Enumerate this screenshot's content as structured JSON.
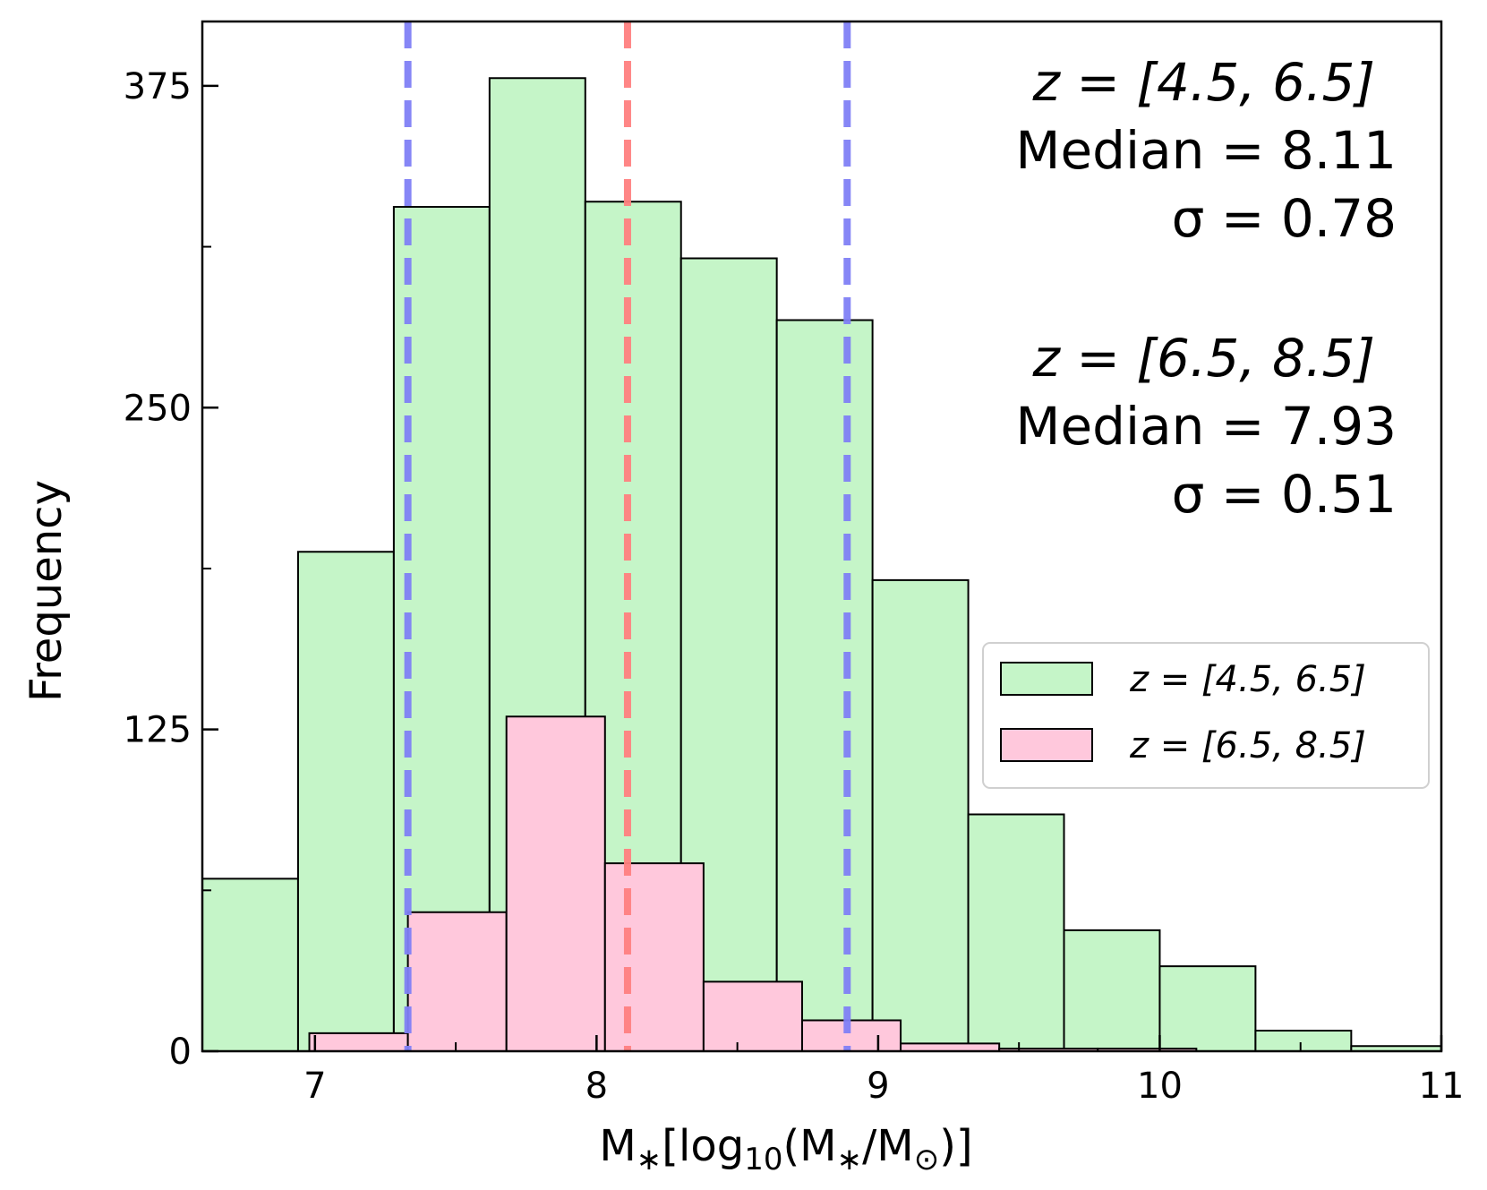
{
  "chart_data": {
    "type": "bar",
    "title": "",
    "xlabel": "M_*[log10(M_*/M_⊙)]",
    "ylabel": "Frequency",
    "xlim": [
      6.6,
      11.0
    ],
    "ylim": [
      0,
      400
    ],
    "xticks": [
      7,
      8,
      9,
      10,
      11
    ],
    "yticks": [
      0,
      125,
      250,
      375
    ],
    "series": [
      {
        "name": "z = [4.5, 6.5]",
        "color": "#c5f5c8",
        "edges": [
          6.6,
          6.94,
          7.28,
          7.62,
          7.96,
          8.3,
          8.64,
          8.98,
          9.32,
          9.66,
          10.0,
          10.34,
          10.68,
          11.02
        ],
        "values": [
          67,
          194,
          328,
          378,
          330,
          308,
          284,
          183,
          92,
          47,
          33,
          8,
          2
        ]
      },
      {
        "name": "z = [6.5, 8.5]",
        "color": "#ffc8dc",
        "edges": [
          6.98,
          7.33,
          7.68,
          8.03,
          8.38,
          8.73,
          9.08,
          9.43,
          9.78,
          10.13
        ],
        "values": [
          7,
          54,
          130,
          73,
          27,
          12,
          3,
          1,
          1
        ]
      }
    ],
    "vlines": [
      {
        "name": "lower-sigma",
        "x": 7.33,
        "color": "#7f7ff5"
      },
      {
        "name": "median",
        "x": 8.11,
        "color": "#ff7f7f"
      },
      {
        "name": "upper-sigma",
        "x": 8.89,
        "color": "#7f7ff5"
      }
    ],
    "annotations": {
      "group1": {
        "label": "z = [4.5, 6.5]",
        "median": "Median = 8.11",
        "sigma": "σ = 0.78"
      },
      "group2": {
        "label": "z = [6.5, 8.5]",
        "median": "Median = 7.93",
        "sigma": "σ = 0.51"
      }
    },
    "legend": {
      "position": "center-right",
      "entries": [
        "z = [4.5, 6.5]",
        "z = [6.5, 8.5]"
      ]
    }
  }
}
